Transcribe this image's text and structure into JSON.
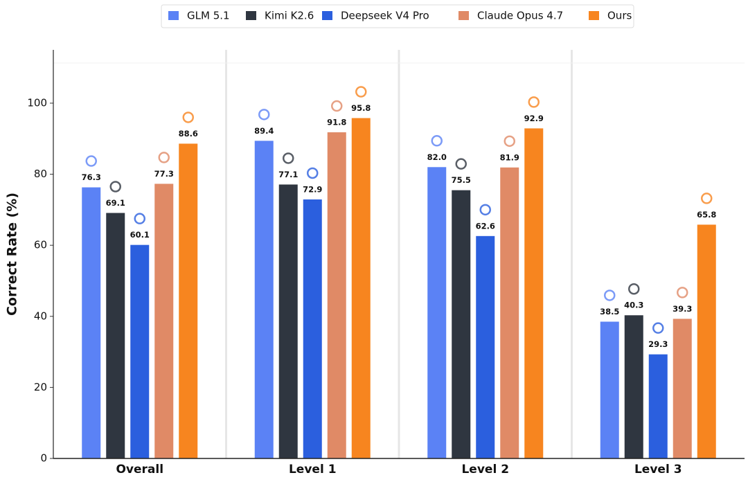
{
  "chart_data": {
    "type": "bar",
    "y_label": "Correct Rate (%)",
    "categories": [
      "Overall",
      "Level 1",
      "Level 2",
      "Level 3"
    ],
    "series": [
      {
        "name": "GLM 5.1",
        "color": "#5b82f5",
        "values": [
          76.3,
          89.4,
          82.0,
          38.5
        ],
        "value_labels": [
          "76.3",
          "89.4",
          "82.0",
          "38.5"
        ]
      },
      {
        "name": "Kimi K2.6",
        "color": "#2f3640",
        "values": [
          69.1,
          77.1,
          75.5,
          40.3
        ],
        "value_labels": [
          "69.1",
          "77.1",
          "75.5",
          "40.3"
        ]
      },
      {
        "name": "Deepseek V4 Pro",
        "color": "#2b5fde",
        "values": [
          60.1,
          72.9,
          62.6,
          29.3
        ],
        "value_labels": [
          "60.1",
          "72.9",
          "62.6",
          "29.3"
        ]
      },
      {
        "name": "Claude Opus 4.7",
        "color": "#e08a66",
        "values": [
          77.3,
          91.8,
          81.9,
          39.3
        ],
        "value_labels": [
          "77.3",
          "91.8",
          "81.9",
          "39.3"
        ]
      },
      {
        "name": "Ours",
        "color": "#f7851f",
        "values": [
          88.6,
          95.8,
          92.9,
          65.8
        ],
        "value_labels": [
          "88.6",
          "95.8",
          "92.9",
          "65.8"
        ]
      }
    ],
    "ylim": [
      0,
      115
    ],
    "yticks": [
      0,
      20,
      40,
      60,
      80,
      100
    ],
    "grid": false,
    "legend": "top"
  }
}
